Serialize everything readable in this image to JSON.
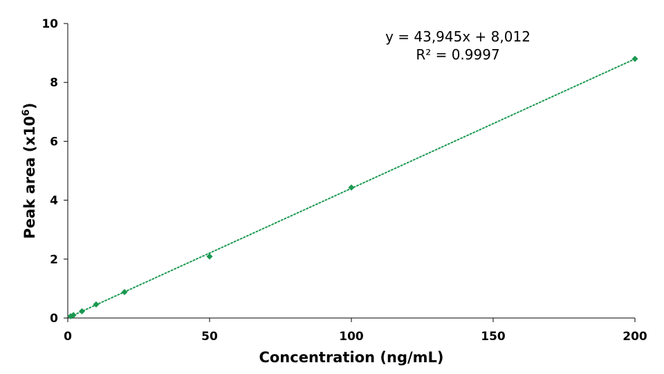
{
  "chart_data": {
    "type": "scatter",
    "xlabel": "Concentration (ng/mL)",
    "ylabel_main": "Peak area (x10",
    "ylabel_sup": "6",
    "ylabel_end": ")",
    "xlim": [
      0,
      200
    ],
    "ylim": [
      0,
      10
    ],
    "x_ticks": [
      0,
      50,
      100,
      150,
      200
    ],
    "y_ticks": [
      0,
      2,
      4,
      6,
      8,
      10
    ],
    "grid": false,
    "series": [
      {
        "x": [
          1,
          2,
          5,
          10,
          20,
          50,
          100,
          200
        ],
        "y": [
          0.06,
          0.1,
          0.23,
          0.46,
          0.88,
          2.09,
          4.43,
          8.8
        ],
        "color": "#1a9850",
        "marker": "diamond"
      }
    ],
    "trendline": {
      "style": "dotted",
      "color": "#1a9850",
      "from": [
        1,
        0.052
      ],
      "to": [
        200,
        8.797
      ]
    },
    "annotation": {
      "equation": "y = 43,945x + 8,012",
      "r_squared": "R² = 0.9997"
    }
  }
}
